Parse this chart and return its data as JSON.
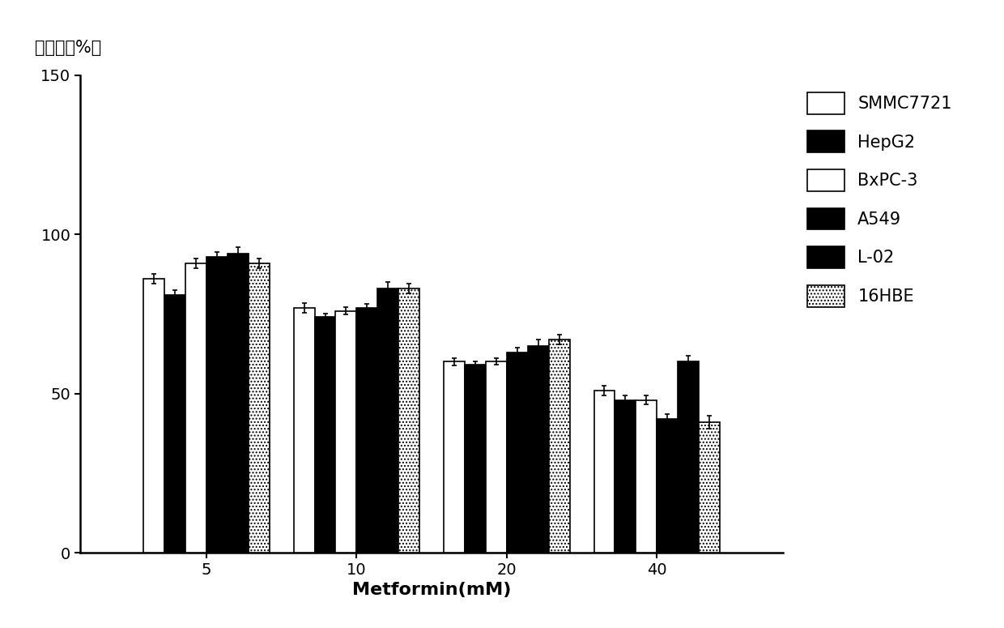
{
  "xlabel": "Metformin(mM)",
  "ylabel": "存活率（%）",
  "ylim": [
    0,
    150
  ],
  "yticks": [
    0,
    50,
    100,
    150
  ],
  "x_labels": [
    "5",
    "10",
    "20",
    "40"
  ],
  "series": [
    {
      "name": "SMMC7721",
      "color": "#ffffff",
      "edgecolor": "#000000",
      "hatch": "",
      "values": [
        86,
        77,
        60,
        51
      ],
      "errors": [
        1.5,
        1.5,
        1.2,
        1.5
      ]
    },
    {
      "name": "HepG2",
      "color": "#000000",
      "edgecolor": "#000000",
      "hatch": "",
      "values": [
        81,
        74,
        59,
        48
      ],
      "errors": [
        1.5,
        1.2,
        1.0,
        1.5
      ]
    },
    {
      "name": "BxPC-3",
      "color": "#ffffff",
      "edgecolor": "#000000",
      "hatch": "",
      "values": [
        91,
        76,
        60,
        48
      ],
      "errors": [
        1.5,
        1.2,
        1.0,
        1.5
      ]
    },
    {
      "name": "A549",
      "color": "#000000",
      "edgecolor": "#000000",
      "hatch": "",
      "values": [
        93,
        77,
        63,
        42
      ],
      "errors": [
        1.5,
        1.2,
        1.5,
        1.5
      ]
    },
    {
      "name": "L-02",
      "color": "#000000",
      "edgecolor": "#000000",
      "hatch": "",
      "values": [
        94,
        83,
        65,
        60
      ],
      "errors": [
        2.0,
        2.0,
        2.0,
        2.0
      ]
    },
    {
      "name": "16HBE",
      "color": "#ffffff",
      "edgecolor": "#000000",
      "hatch": "....",
      "values": [
        91,
        83,
        67,
        41
      ],
      "errors": [
        1.5,
        1.5,
        1.5,
        2.0
      ]
    }
  ],
  "bar_width": 0.14,
  "background_color": "#ffffff",
  "xlabel_fontsize": 16,
  "tick_fontsize": 14,
  "legend_fontsize": 15,
  "spine_linewidth": 1.8
}
